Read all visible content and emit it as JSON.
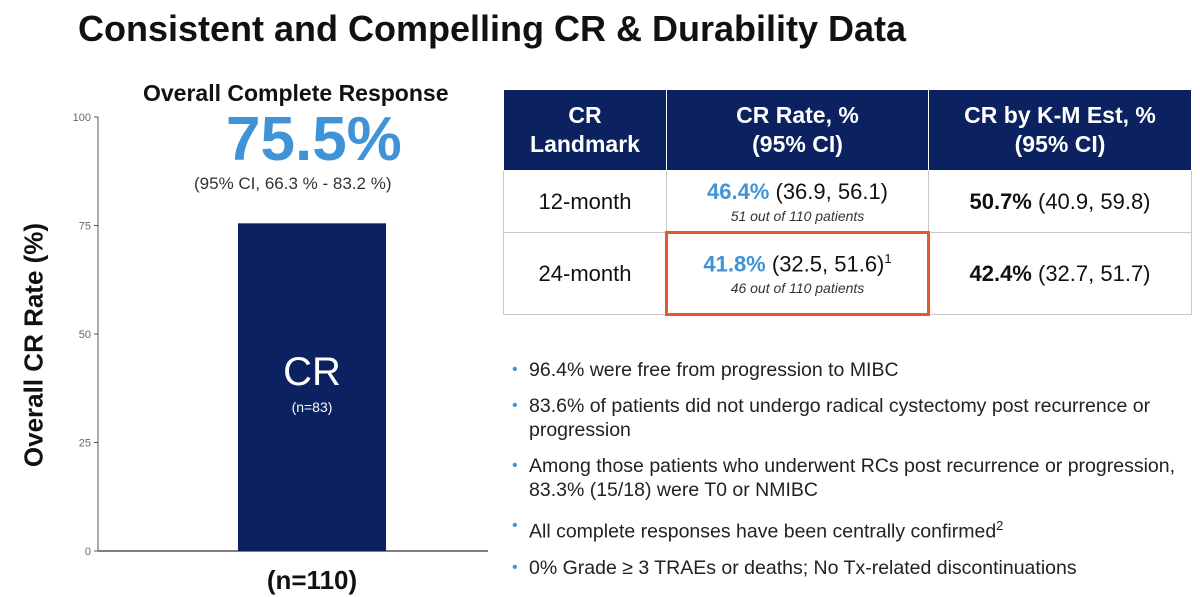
{
  "title": "Consistent and Compelling CR & Durability Data",
  "chart_data": {
    "type": "bar",
    "categories": [
      "CR"
    ],
    "values": [
      75.5
    ],
    "ylabel": "Overall CR Rate (%)",
    "ylim": [
      0,
      100
    ],
    "yticks": [
      0,
      25,
      50,
      75,
      100
    ],
    "ytick_labels": [
      "0",
      "25",
      "50",
      "75",
      "100"
    ],
    "heading": "Overall Complete Response",
    "headline_value": "75.5%",
    "ci_text": "(95% CI, 66.3 % - 83.2 %)",
    "bar_label": "CR",
    "bar_sublabel": "(n=83)",
    "n_label": "(n=110)",
    "bar_color": "#0b2160",
    "grid": false
  },
  "table": {
    "headers": [
      {
        "line1": "CR",
        "line2": "Landmark"
      },
      {
        "line1": "CR Rate, %",
        "line2": "(95% CI)"
      },
      {
        "line1": "CR by K-M Est, %",
        "line2": "(95% CI)"
      }
    ],
    "rows": [
      {
        "landmark": "12-month",
        "rate_value": "46.4%",
        "rate_ci": " (36.9, 56.1)",
        "rate_sup": "",
        "rate_note": "51 out of 110 patients",
        "km_value": "50.7%",
        "km_ci": " (40.9, 59.8)"
      },
      {
        "landmark": "24-month",
        "rate_value": "41.8%",
        "rate_ci": " (32.5, 51.6)",
        "rate_sup": "1",
        "rate_note": "46 out of 110 patients",
        "km_value": "42.4%",
        "km_ci": " (32.7, 51.7)"
      }
    ]
  },
  "bullets": [
    {
      "text": "96.4% were free from progression to MIBC",
      "sup": ""
    },
    {
      "text": "83.6% of patients did not undergo radical cystectomy post recurrence or progression",
      "sup": ""
    },
    {
      "text": "Among those patients who underwent RCs post recurrence or progression, 83.3% (15/18) were T0 or NMIBC",
      "sup": ""
    },
    {
      "text": "All complete responses have been centrally confirmed",
      "sup": "2"
    },
    {
      "text": "0% Grade ≥ 3 TRAEs or deaths; No Tx-related discontinuations",
      "sup": ""
    }
  ],
  "colors": {
    "accent_blue": "#3f93d6",
    "navy": "#0b2160",
    "highlight_border": "#e05a2a"
  }
}
